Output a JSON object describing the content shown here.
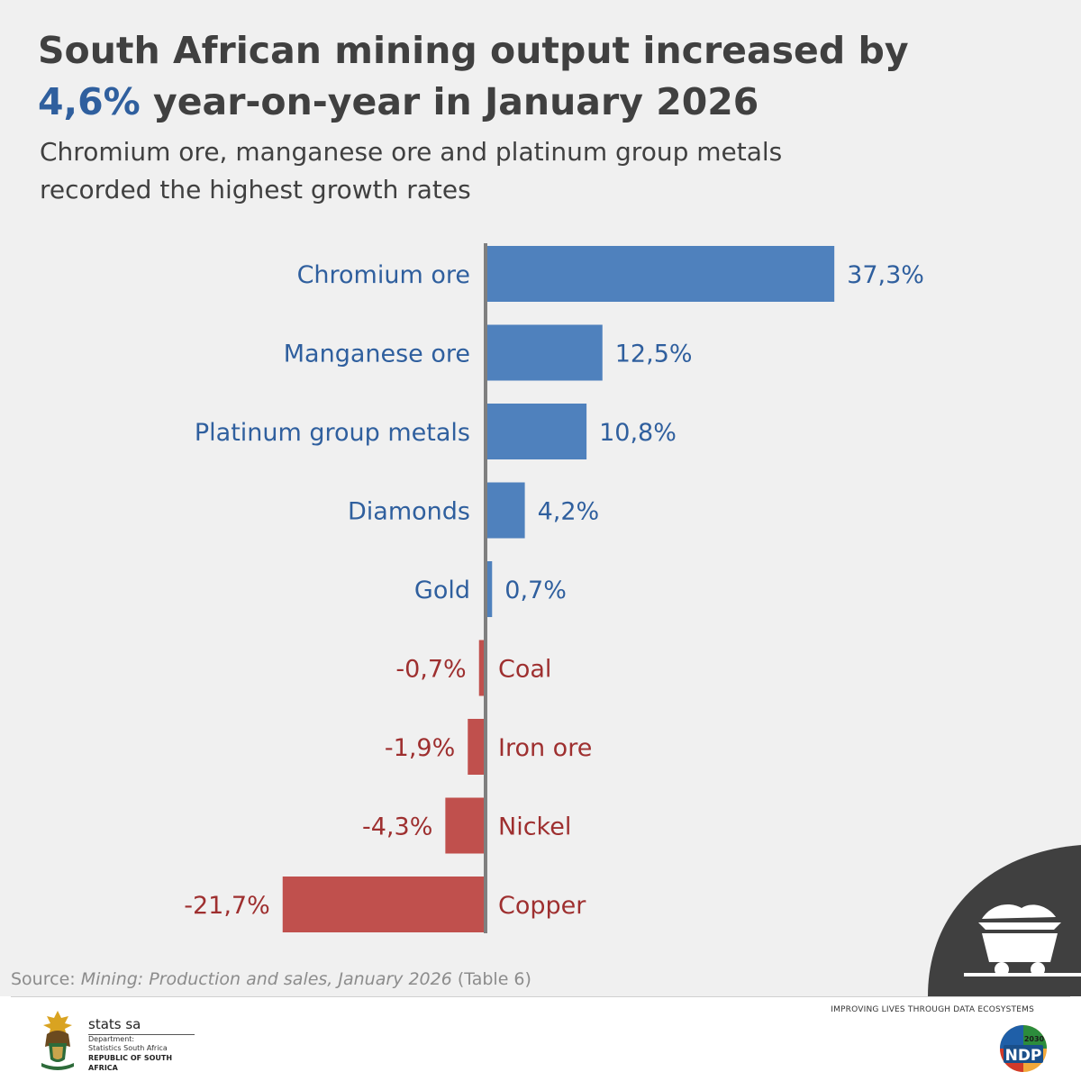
{
  "title": {
    "line1": "South African mining output increased by",
    "highlight": "4,6%",
    "line2_rest": " year-on-year in January 2026"
  },
  "subtitle": "Chromium ore, manganese ore and platinum group metals recorded the highest growth rates",
  "chart_data": {
    "type": "bar",
    "orientation": "horizontal",
    "categories": [
      "Chromium ore",
      "Manganese ore",
      "Platinum group metals",
      "Diamonds",
      "Gold",
      "Coal",
      "Iron ore",
      "Nickel",
      "Copper"
    ],
    "values": [
      37.3,
      12.5,
      10.8,
      4.2,
      0.7,
      -0.7,
      -1.9,
      -4.3,
      -21.7
    ],
    "value_labels": [
      "37,3%",
      "12,5%",
      "10,8%",
      "4,2%",
      "0,7%",
      "-0,7%",
      "-1,9%",
      "-4,3%",
      "-21,7%"
    ],
    "positive_color": "#4f81bd",
    "negative_color": "#c0504d",
    "positive_text_color": "#2f5f9e",
    "negative_text_color": "#9e2f2f",
    "axis_color": "#7f7f7f"
  },
  "source": {
    "prefix": "Source: ",
    "publication": "Mining: Production and sales, January 2026",
    "suffix": " (Table 6)"
  },
  "footer": {
    "brand_name": "stats sa",
    "brand_line1": "Department:",
    "brand_line2": "Statistics South Africa",
    "brand_line3": "REPUBLIC OF SOUTH AFRICA",
    "slogan": "IMPROVING LIVES THROUGH DATA ECOSYSTEMS",
    "ndp_year": "2030",
    "ndp_label": "NDP"
  },
  "icons": {
    "badge": "mining-cart-icon",
    "coat": "coat-of-arms-icon",
    "ndp": "ndp-logo-icon"
  }
}
